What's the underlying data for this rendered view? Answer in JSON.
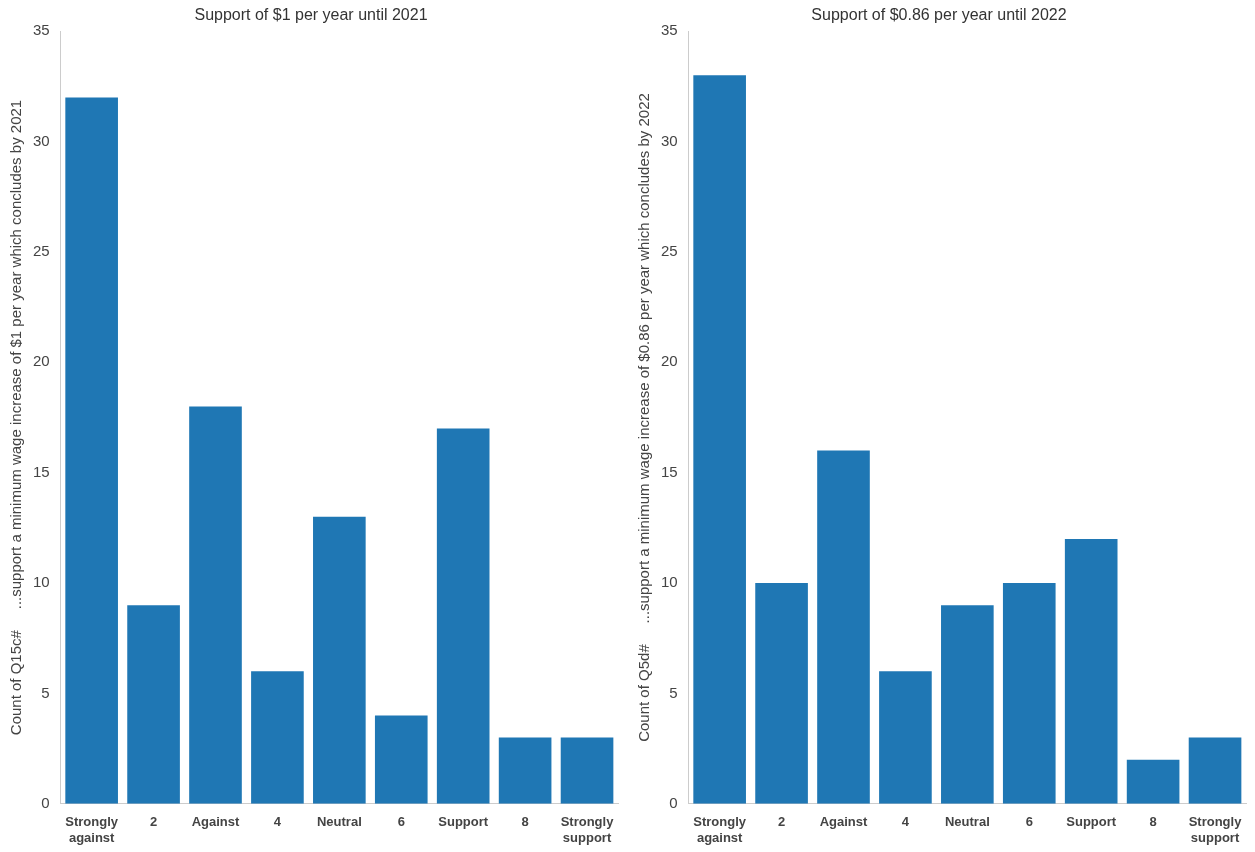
{
  "chart_data": [
    {
      "type": "bar",
      "title": "Support of $1 per year until 2021",
      "ylabel": "Count of Q15c#     ...support a minimum wage increase of $1 per year which concludes by 2021",
      "categories": [
        "Strongly against",
        "2",
        "Against",
        "4",
        "Neutral",
        "6",
        "Support",
        "8",
        "Strongly support"
      ],
      "values": [
        32,
        9,
        18,
        6,
        13,
        4,
        17,
        3,
        3
      ],
      "color": "#1f77b4",
      "ylim": [
        0,
        35
      ],
      "yticks": [
        0,
        5,
        10,
        15,
        20,
        25,
        30,
        35
      ],
      "grid": false,
      "legend": false
    },
    {
      "type": "bar",
      "title": "Support of $0.86 per year until 2022",
      "ylabel": "Count of Q5d#     ...support a minimum wage increase of $0.86 per year which concludes by 2022",
      "categories": [
        "Strongly against",
        "2",
        "Against",
        "4",
        "Neutral",
        "6",
        "Support",
        "8",
        "Strongly support"
      ],
      "values": [
        33,
        10,
        16,
        6,
        9,
        10,
        12,
        2,
        3
      ],
      "color": "#1f77b4",
      "ylim": [
        0,
        35
      ],
      "yticks": [
        0,
        5,
        10,
        15,
        20,
        25,
        30,
        35
      ],
      "grid": false,
      "legend": false
    }
  ]
}
